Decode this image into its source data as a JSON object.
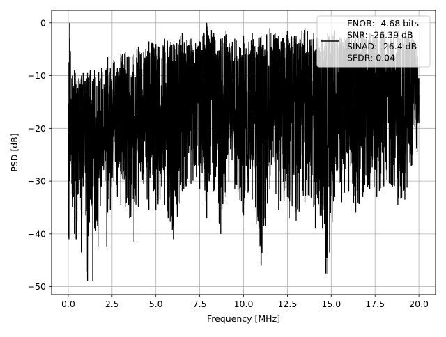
{
  "chart_data": {
    "type": "line",
    "title": "",
    "xlabel": "Frequency [MHz]",
    "ylabel": "PSD [dB]",
    "xlim": [
      -0.95,
      20.95
    ],
    "ylim": [
      -51.5,
      2.35
    ],
    "xticks": [
      0.0,
      2.5,
      5.0,
      7.5,
      10.0,
      12.5,
      15.0,
      17.5,
      20.0
    ],
    "xtick_labels": [
      "0.0",
      "2.5",
      "5.0",
      "7.5",
      "10.0",
      "12.5",
      "15.0",
      "17.5",
      "20.0"
    ],
    "yticks": [
      0,
      -10,
      -20,
      -30,
      -40,
      -50
    ],
    "ytick_labels": [
      "0",
      "−10",
      "−20",
      "−30",
      "−40",
      "−50"
    ],
    "grid": true,
    "legend_position": "top-right",
    "series": [
      {
        "name": "ENOB: -4.68 bits\nSNR: -26.39 dB\nSINAD: -26.4 dB\nSFDR: 0.04",
        "color": "#000000",
        "x": [
          0.0,
          0.04,
          0.08,
          0.2,
          0.25,
          0.35,
          0.4,
          0.5,
          0.6,
          0.75,
          0.85,
          1.0,
          1.1,
          1.25,
          1.4,
          1.5,
          1.7,
          1.9,
          2.1,
          2.25,
          2.4,
          2.6,
          2.8,
          3.0,
          3.25,
          3.5,
          3.75,
          4.0,
          4.3,
          4.6,
          5.0,
          5.5,
          6.0,
          6.5,
          7.0,
          7.5,
          7.9,
          8.3,
          8.7,
          9.0,
          9.5,
          10.0,
          10.5,
          11.0,
          11.5,
          12.0,
          12.5,
          13.0,
          13.5,
          14.0,
          14.5,
          14.8,
          15.2,
          15.6,
          16.0,
          16.4,
          16.8,
          17.2,
          17.6,
          18.0,
          18.4,
          18.8,
          19.2,
          19.6,
          19.9,
          20.0
        ],
        "upper": [
          -15.5,
          -7.5,
          0.0,
          -10.5,
          -10.0,
          -9.0,
          -9.5,
          -11.0,
          -10.5,
          -10.0,
          -9.5,
          -11.0,
          -9.5,
          -9.0,
          -11.0,
          -9.0,
          -9.5,
          -8.5,
          -9.0,
          -6.5,
          -8.5,
          -7.0,
          -8.5,
          -6.0,
          -5.5,
          -6.5,
          -6.0,
          -4.5,
          -5.5,
          -3.5,
          -4.0,
          -3.0,
          -4.0,
          -2.0,
          -3.0,
          -3.5,
          0.0,
          -2.0,
          -3.0,
          -1.5,
          -3.0,
          -2.5,
          -2.0,
          -2.5,
          -1.0,
          -2.5,
          -1.5,
          -2.5,
          -1.0,
          -2.0,
          -3.0,
          -2.0,
          -1.5,
          -3.0,
          -2.0,
          -3.0,
          -1.5,
          -2.0,
          -2.5,
          -2.0,
          -3.0,
          -1.5,
          -2.5,
          -2.0,
          -3.5,
          -10.5
        ],
        "lower": [
          -19.5,
          -41.0,
          -30.0,
          -30.5,
          -35.0,
          -40.0,
          -30.0,
          -37.5,
          -32.5,
          -43.5,
          -31.0,
          -36.5,
          -49.0,
          -33.5,
          -38.0,
          -39.0,
          -42.5,
          -31.0,
          -30.0,
          -36.0,
          -35.5,
          -30.0,
          -33.0,
          -34.5,
          -35.0,
          -37.0,
          -41.5,
          -35.0,
          -30.5,
          -35.5,
          -35.5,
          -34.5,
          -41.0,
          -32.0,
          -30.5,
          -31.5,
          -37.0,
          -32.0,
          -40.0,
          -33.0,
          -31.5,
          -36.5,
          -33.5,
          -46.0,
          -31.5,
          -35.5,
          -33.0,
          -37.5,
          -34.0,
          -35.0,
          -39.0,
          -47.5,
          -33.0,
          -34.0,
          -32.0,
          -36.0,
          -33.0,
          -31.5,
          -33.0,
          -31.0,
          -30.5,
          -34.5,
          -33.5,
          -27.0,
          -24.5,
          -19.0
        ],
        "spikes": [
          {
            "x": 0.02,
            "y": -40.5
          },
          {
            "x": 0.45,
            "y": -41.0
          },
          {
            "x": 0.75,
            "y": -43.5
          },
          {
            "x": 1.4,
            "y": -49.0
          },
          {
            "x": 2.2,
            "y": -42.5
          },
          {
            "x": 5.7,
            "y": -37.0
          },
          {
            "x": 9.95,
            "y": -36.0
          },
          {
            "x": 11.0,
            "y": -46.0
          },
          {
            "x": 12.6,
            "y": -37.0
          },
          {
            "x": 14.7,
            "y": -47.5
          },
          {
            "x": 14.1,
            "y": -39.0
          }
        ]
      }
    ]
  }
}
